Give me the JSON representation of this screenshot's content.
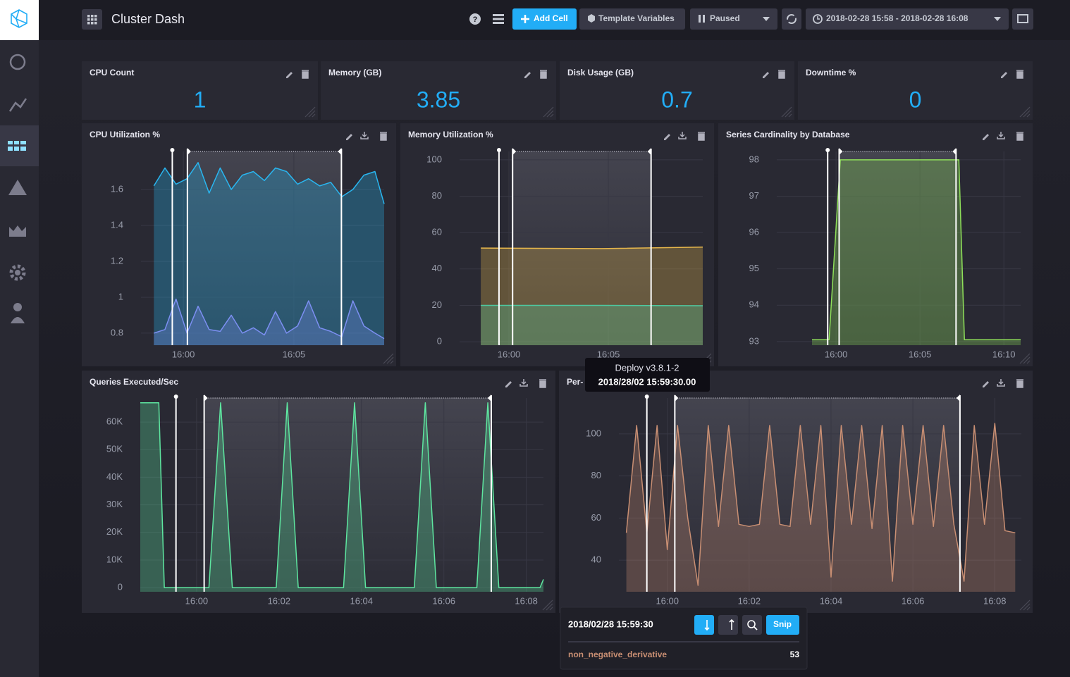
{
  "header": {
    "title": "Cluster Dash",
    "add_cell": "Add Cell",
    "template_variables": "Template Variables",
    "status": "Paused",
    "time_range": "2018-02-28 15:58 - 2018-02-28 16:08"
  },
  "stats": [
    {
      "title": "CPU Count",
      "value": 1
    },
    {
      "title": "Memory (GB)",
      "value": 3.85
    },
    {
      "title": "Disk Usage (GB)",
      "value": 0.7
    },
    {
      "title": "Downtime %",
      "value": 0
    }
  ],
  "annotations": {
    "point": "15:59:30",
    "range": [
      "16:00:11",
      "16:07:09"
    ]
  },
  "charts": [
    {
      "type": "line",
      "title": "CPU Utilization %",
      "xlim": [
        "15:58:05",
        "16:09:05"
      ],
      "xticks": [
        "16:00",
        "16:05"
      ],
      "ylim": [
        0.733,
        1.812
      ],
      "yticks": [
        0.8,
        1,
        1.2,
        1.4,
        1.6
      ],
      "x": [
        "15:58:40",
        "15:59:10",
        "15:59:40",
        "16:00:10",
        "16:00:40",
        "16:01:10",
        "16:01:40",
        "16:02:10",
        "16:02:40",
        "16:03:10",
        "16:03:40",
        "16:04:10",
        "16:04:40",
        "16:05:10",
        "16:05:40",
        "16:06:10",
        "16:06:40",
        "16:07:10",
        "16:07:40",
        "16:08:10",
        "16:08:40",
        "16:09:05"
      ],
      "series": [
        {
          "color": "#29b6f0",
          "values": [
            1.62,
            1.72,
            1.63,
            1.66,
            1.75,
            1.58,
            1.72,
            1.6,
            1.68,
            1.7,
            1.65,
            1.72,
            1.7,
            1.63,
            1.66,
            1.62,
            1.64,
            1.56,
            1.6,
            1.68,
            1.7,
            1.52
          ]
        },
        {
          "color": "#7c8ff2",
          "values": [
            0.8,
            0.82,
            0.99,
            0.8,
            0.95,
            0.82,
            0.81,
            0.9,
            0.8,
            0.83,
            0.79,
            0.92,
            0.8,
            0.84,
            0.98,
            0.83,
            0.81,
            0.78,
            0.98,
            0.84,
            0.8,
            0.77
          ]
        }
      ]
    },
    {
      "type": "line",
      "title": "Memory Utilization %",
      "xlim": [
        "15:57:31",
        "16:09:45"
      ],
      "xticks": [
        "16:00",
        "16:05"
      ],
      "ylim": [
        -1.9,
        104.6
      ],
      "yticks": [
        0,
        20,
        40,
        60,
        80,
        100
      ],
      "x": [
        "15:58:35",
        "16:04:40",
        "16:09:45"
      ],
      "series": [
        {
          "color": "#e8b84c",
          "values": [
            51.5,
            51.2,
            52
          ]
        },
        {
          "color": "#4ec9a0",
          "values": [
            20,
            20,
            19.8
          ]
        }
      ]
    },
    {
      "type": "line",
      "title": "Series Cardinality by Database",
      "xlim": [
        "15:56:28",
        "16:11:00"
      ],
      "xticks": [
        "16:00",
        "16:05",
        "16:10"
      ],
      "ylim": [
        92.9,
        98.23
      ],
      "yticks": [
        93,
        94,
        95,
        96,
        97,
        98
      ],
      "x": [
        "15:58:34",
        "15:59:35",
        "16:00:15",
        "16:07:19",
        "16:07:39",
        "16:11:00"
      ],
      "series": [
        {
          "color": "#8fe05a",
          "values": [
            93.05,
            93.05,
            98,
            98,
            93.05,
            93.05
          ]
        }
      ]
    },
    {
      "type": "line",
      "title": "Queries Executed/Sec",
      "xlim": [
        "15:58:38",
        "16:08:25"
      ],
      "xticks": [
        "16:00",
        "16:02",
        "16:04",
        "16:06",
        "16:08"
      ],
      "ylim": [
        -1500,
        68700
      ],
      "yticks": [
        0,
        {
          "value": 10000,
          "label": "10K"
        },
        {
          "value": 20000,
          "label": "20K"
        },
        {
          "value": 30000,
          "label": "30K"
        },
        {
          "value": 40000,
          "label": "40K"
        },
        {
          "value": 50000,
          "label": "50K"
        },
        {
          "value": 60000,
          "label": "60K"
        }
      ],
      "x": [
        "15:58:38",
        "15:59:05",
        "15:59:13",
        "16:00:18",
        "16:00:35",
        "16:00:52",
        "16:01:56",
        "16:02:12",
        "16:02:28",
        "16:03:34",
        "16:03:50",
        "16:04:06",
        "16:05:17",
        "16:05:33",
        "16:05:49",
        "16:06:48",
        "16:07:04",
        "16:07:20",
        "16:08:20",
        "16:08:25"
      ],
      "series": [
        {
          "color": "#5ee6a0",
          "values": [
            67000,
            67000,
            0,
            0,
            67000,
            0,
            0,
            67000,
            0,
            0,
            67000,
            0,
            0,
            67000,
            0,
            0,
            67000,
            0,
            0,
            3000
          ]
        }
      ]
    },
    {
      "type": "line",
      "title": "Per-",
      "xlim": [
        "15:58:49",
        "16:08:39"
      ],
      "xticks": [
        "16:00",
        "16:02",
        "16:04",
        "16:06",
        "16:08"
      ],
      "ylim": [
        25,
        117
      ],
      "yticks": [
        40,
        60,
        80,
        100
      ],
      "x": [
        "15:59:00",
        "15:59:15",
        "15:59:30",
        "15:59:45",
        "16:00:00",
        "16:00:15",
        "16:00:30",
        "16:00:45",
        "16:01:00",
        "16:01:15",
        "16:01:30",
        "16:01:45",
        "16:02:00",
        "16:02:15",
        "16:02:30",
        "16:02:45",
        "16:03:00",
        "16:03:15",
        "16:03:30",
        "16:03:45",
        "16:04:00",
        "16:04:15",
        "16:04:30",
        "16:04:45",
        "16:05:00",
        "16:05:15",
        "16:05:30",
        "16:05:45",
        "16:06:00",
        "16:06:15",
        "16:06:30",
        "16:06:45",
        "16:07:00",
        "16:07:15",
        "16:07:30",
        "16:07:45",
        "16:08:00",
        "16:08:15",
        "16:08:30"
      ],
      "series": [
        {
          "color": "#c98f73",
          "values": [
            53,
            104,
            53,
            104,
            45,
            104,
            60,
            28,
            104,
            56,
            104,
            57,
            56,
            57,
            104,
            57,
            56,
            104,
            57,
            104,
            32,
            104,
            57,
            104,
            55,
            104,
            30,
            104,
            57,
            104,
            56,
            104,
            57,
            30,
            104,
            57,
            105,
            54,
            53
          ]
        }
      ]
    }
  ],
  "annotation_tooltip": {
    "name": "Deploy v3.8.1-2",
    "time": "2018/28/02 15:59:30.00"
  },
  "hover_tooltip": {
    "time": "2018/02/28 15:59:30",
    "action": "Snip",
    "series": "non_negative_derivative",
    "value": 53
  }
}
